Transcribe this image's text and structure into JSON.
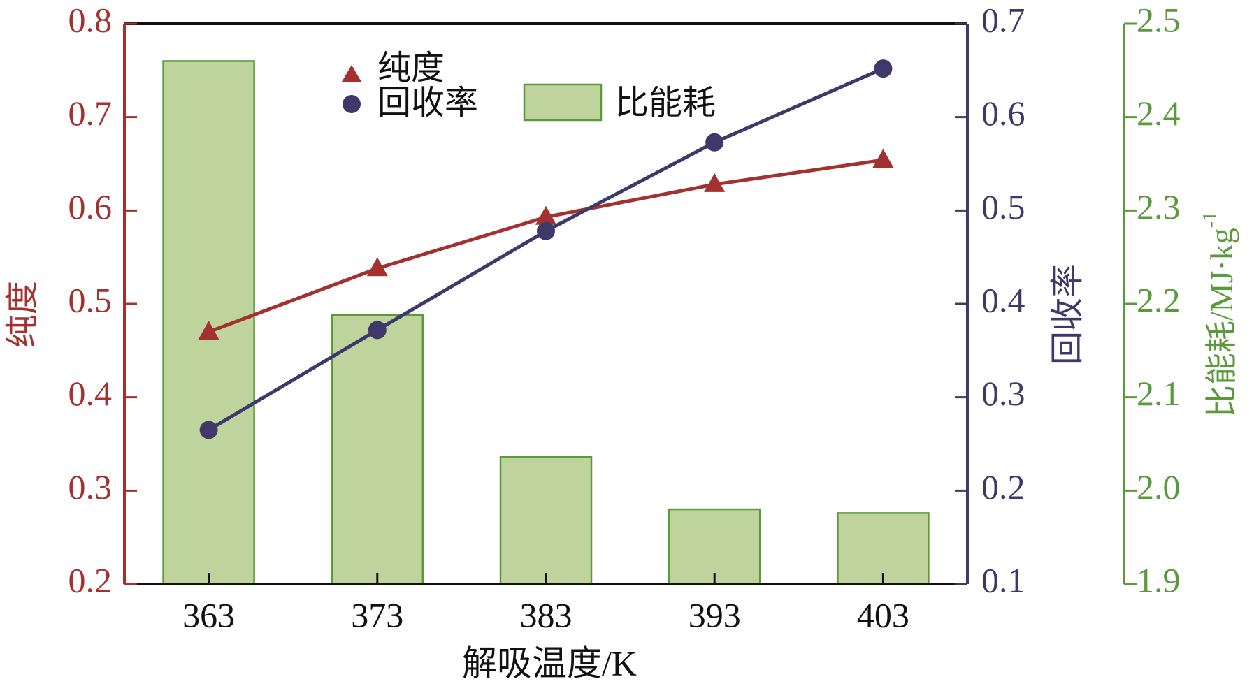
{
  "chart_data": {
    "type": "bar",
    "categories": [
      "363",
      "373",
      "383",
      "393",
      "403"
    ],
    "xlabel": "解吸温度/K",
    "series": [
      {
        "name": "纯度",
        "type": "line",
        "axis": "left",
        "marker": "triangle",
        "color": "#a3312f",
        "values": [
          0.47,
          0.538,
          0.593,
          0.628,
          0.654
        ]
      },
      {
        "name": "回收率",
        "type": "line",
        "axis": "right1",
        "marker": "circle",
        "color": "#3d3a6b",
        "values": [
          0.265,
          0.372,
          0.478,
          0.573,
          0.652
        ]
      },
      {
        "name": "比能耗",
        "type": "bar",
        "axis": "right2",
        "color": "#bfd49c",
        "edge_color": "#5a9a3a",
        "values": [
          2.46,
          2.188,
          2.036,
          1.98,
          1.976
        ]
      }
    ],
    "axes": {
      "left": {
        "label": "纯度",
        "color": "#a3312f",
        "range": [
          0.2,
          0.8
        ],
        "ticks": [
          "0.2",
          "0.3",
          "0.4",
          "0.5",
          "0.6",
          "0.7",
          "0.8"
        ]
      },
      "right1": {
        "label": "回收率",
        "color": "#3d3a6b",
        "range": [
          0.1,
          0.7
        ],
        "ticks": [
          "0.1",
          "0.2",
          "0.3",
          "0.4",
          "0.5",
          "0.6",
          "0.7"
        ]
      },
      "right2": {
        "label": "比能耗/MJ·kg",
        "label_sup": "-1",
        "color": "#5a9a3a",
        "range": [
          1.9,
          2.5
        ],
        "ticks": [
          "1.9",
          "2.0",
          "2.1",
          "2.2",
          "2.3",
          "2.4",
          "2.5"
        ]
      }
    },
    "legend": {
      "placement": "top-center",
      "entries": [
        "纯度",
        "回收率",
        "比能耗"
      ]
    },
    "grid": false
  }
}
